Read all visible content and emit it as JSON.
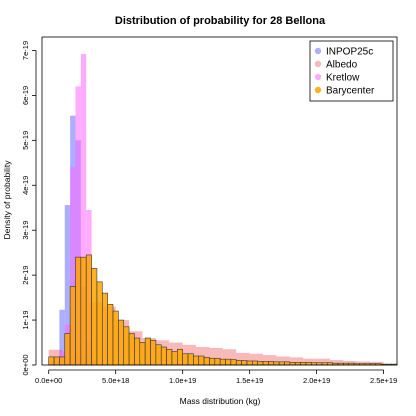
{
  "chart_data": {
    "type": "histogram",
    "title": "Distribution of probability for 28 Bellona",
    "xlabel": "Mass distribution (kg)",
    "ylabel": "Density of probability",
    "xlim": [
      -5e+17,
      2.6e+19
    ],
    "ylim": [
      0,
      7.3e-19
    ],
    "x_ticks": [
      0,
      5e+18,
      1e+19,
      1.5e+19,
      2e+19,
      2.5e+19
    ],
    "x_tick_labels": [
      "0.0e+00",
      "5.0e+18",
      "1.0e+19",
      "1.5e+19",
      "2.0e+19",
      "2.5e+19"
    ],
    "y_ticks": [
      0,
      1e-19,
      2e-19,
      3e-19,
      4e-19,
      5e-19,
      6e-19,
      7e-19
    ],
    "y_tick_labels": [
      "0e+00",
      "1e-19",
      "2e-19",
      "3e-19",
      "4e-19",
      "5e-19",
      "6e-19",
      "7e-19"
    ],
    "legend_position": "top-right",
    "series": [
      {
        "name": "Albedo",
        "color": "#f08080",
        "opacity": 0.55,
        "stroke": "none",
        "bin_width": 1e+18,
        "bins": [
          [
            0,
            3.4e-20
          ],
          [
            1e+18,
            1.8e-20
          ],
          [
            2e+18,
            2.5e-20
          ],
          [
            3e+18,
            1.4e-19
          ],
          [
            4e+18,
            1.3e-19
          ],
          [
            5e+18,
            1e-19
          ],
          [
            6e+18,
            7.5e-20
          ],
          [
            7e+18,
            6e-20
          ],
          [
            8e+18,
            5.5e-20
          ],
          [
            9e+18,
            5e-20
          ],
          [
            1e+19,
            4.5e-20
          ],
          [
            1.1e+19,
            4e-20
          ],
          [
            1.2e+19,
            3.8e-20
          ],
          [
            1.3e+19,
            3.5e-20
          ],
          [
            1.4e+19,
            2.7e-20
          ],
          [
            1.5e+19,
            2.5e-20
          ],
          [
            1.6e+19,
            2.2e-20
          ],
          [
            1.7e+19,
            1.9e-20
          ],
          [
            1.8e+19,
            1.7e-20
          ],
          [
            1.9e+19,
            1.4e-20
          ],
          [
            2e+19,
            1.4e-20
          ],
          [
            2.1e+19,
            1.1e-20
          ],
          [
            2.2e+19,
            9e-21
          ],
          [
            2.3e+19,
            8e-21
          ],
          [
            2.4e+19,
            7e-21
          ]
        ]
      },
      {
        "name": "INPOP25c",
        "color": "#6b6bff",
        "opacity": 0.55,
        "stroke": "none",
        "bin_width": 4e+17,
        "bins": [
          [
            4e+17,
            8e-21
          ],
          [
            8e+17,
            1.23e-19
          ],
          [
            1.2e+18,
            3.56e-19
          ],
          [
            1.6e+18,
            5.55e-19
          ],
          [
            2e+18,
            5e-19
          ],
          [
            2.4e+18,
            1.74e-19
          ],
          [
            2.8e+18,
            5.2e-20
          ],
          [
            3.2e+18,
            1e-20
          ]
        ]
      },
      {
        "name": "Kretlow",
        "color": "#ff66ff",
        "opacity": 0.55,
        "stroke": "none",
        "bin_width": 4e+17,
        "bins": [
          [
            0,
            8e-21
          ],
          [
            4e+17,
            1.8e-20
          ],
          [
            8e+17,
            3e-20
          ],
          [
            1.2e+18,
            9e-20
          ],
          [
            1.6e+18,
            4.4e-19
          ],
          [
            2e+18,
            6.2e-19
          ],
          [
            2.4e+18,
            6.92e-19
          ],
          [
            2.8e+18,
            3.45e-19
          ],
          [
            3.2e+18,
            1e-20
          ]
        ]
      },
      {
        "name": "Barycenter",
        "color": "#ffa500",
        "opacity": 0.85,
        "stroke": "#333333",
        "bin_width": 4e+17,
        "bins": [
          [
            0,
            1.8e-20
          ],
          [
            4e+17,
            1.8e-20
          ],
          [
            8e+17,
            1.8e-20
          ],
          [
            1.2e+18,
            7e-20
          ],
          [
            1.6e+18,
            1.75e-19
          ],
          [
            2e+18,
            2.4e-19
          ],
          [
            2.4e+18,
            2.4e-19
          ],
          [
            2.8e+18,
            2.45e-19
          ],
          [
            3.2e+18,
            2.15e-19
          ],
          [
            3.6e+18,
            1.85e-19
          ],
          [
            4e+18,
            1.6e-19
          ],
          [
            4.4e+18,
            1.35e-19
          ],
          [
            4.8e+18,
            1.2e-19
          ],
          [
            5.2e+18,
            1e-19
          ],
          [
            5.6e+18,
            8.5e-20
          ],
          [
            6e+18,
            7e-20
          ],
          [
            6.4e+18,
            6e-20
          ],
          [
            6.8e+18,
            5e-20
          ],
          [
            7.2e+18,
            6e-20
          ],
          [
            7.6e+18,
            5.5e-20
          ],
          [
            8e+18,
            4.5e-20
          ],
          [
            8.4e+18,
            4e-20
          ],
          [
            8.8e+18,
            3.5e-20
          ],
          [
            9.2e+18,
            3e-20
          ],
          [
            9.6e+18,
            3.5e-20
          ],
          [
            1e+19,
            2.5e-20
          ],
          [
            1.04e+19,
            2.5e-20
          ],
          [
            1.08e+19,
            2e-20
          ],
          [
            1.12e+19,
            2e-20
          ],
          [
            1.16e+19,
            1.7e-20
          ],
          [
            1.2e+19,
            1.5e-20
          ],
          [
            1.24e+19,
            1.5e-20
          ],
          [
            1.28e+19,
            1.3e-20
          ],
          [
            1.32e+19,
            1.3e-20
          ],
          [
            1.36e+19,
            1.2e-20
          ],
          [
            1.4e+19,
            1e-20
          ],
          [
            1.44e+19,
            1e-20
          ],
          [
            1.48e+19,
            9e-21
          ],
          [
            1.52e+19,
            9e-21
          ],
          [
            1.56e+19,
            8e-21
          ],
          [
            1.6e+19,
            8e-21
          ],
          [
            1.64e+19,
            8e-21
          ],
          [
            1.68e+19,
            7e-21
          ],
          [
            1.72e+19,
            7e-21
          ],
          [
            1.76e+19,
            7e-21
          ],
          [
            1.8e+19,
            6e-21
          ],
          [
            1.84e+19,
            6e-21
          ],
          [
            1.88e+19,
            6e-21
          ],
          [
            1.92e+19,
            6e-21
          ],
          [
            1.96e+19,
            5e-21
          ],
          [
            2e+19,
            5e-21
          ],
          [
            2.04e+19,
            5e-21
          ],
          [
            2.08e+19,
            5e-21
          ],
          [
            2.12e+19,
            4e-21
          ],
          [
            2.16e+19,
            4e-21
          ],
          [
            2.2e+19,
            4e-21
          ],
          [
            2.24e+19,
            4e-21
          ],
          [
            2.28e+19,
            3e-21
          ],
          [
            2.32e+19,
            3e-21
          ],
          [
            2.36e+19,
            3e-21
          ],
          [
            2.4e+19,
            3e-21
          ],
          [
            2.44e+19,
            3e-21
          ],
          [
            2.48e+19,
            2e-21
          ],
          [
            2.52e+19,
            2e-21
          ],
          [
            2.56e+19,
            2e-21
          ]
        ]
      }
    ],
    "legend_order": [
      "INPOP25c",
      "Albedo",
      "Kretlow",
      "Barycenter"
    ]
  }
}
